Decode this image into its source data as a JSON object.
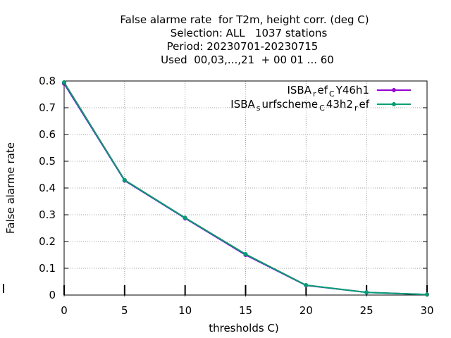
{
  "chart_data": {
    "type": "line",
    "title_lines": [
      "False alarme rate  for T2m, height corr. (deg C)",
      "Selection: ALL   1037 stations",
      "Period: 20230701-20230715",
      "Used  00,03,...,21  + 00 01 ... 60"
    ],
    "xlabel": "thresholds C)",
    "ylabel": "False alarme rate",
    "xlim": [
      0,
      30
    ],
    "ylim": [
      0,
      0.8
    ],
    "x_ticks": [
      0,
      5,
      10,
      15,
      20,
      25,
      30
    ],
    "y_ticks": [
      0,
      0.1,
      0.2,
      0.3,
      0.4,
      0.5,
      0.6,
      0.7,
      0.8
    ],
    "x_tick_labels": [
      "0",
      "5",
      "10",
      "15",
      "20",
      "25",
      "30"
    ],
    "y_tick_labels": [
      "0",
      "0.1",
      "0.2",
      "0.3",
      "0.4",
      "0.5",
      "0.6",
      "0.7",
      "0.8"
    ],
    "grid": true,
    "legend_position": "top-right",
    "x": [
      0,
      5,
      10,
      15,
      20,
      25,
      30
    ],
    "series": [
      {
        "name": "ISBA_ref_CY46h1",
        "legend_parts": [
          [
            "ISBA",
            "n"
          ],
          [
            "r",
            "s"
          ],
          [
            "ef",
            "n"
          ],
          [
            "C",
            "s"
          ],
          [
            "Y46h1",
            "n"
          ]
        ],
        "color": "#9400d3",
        "values": [
          0.79,
          0.428,
          0.287,
          0.15,
          0.036,
          0.01,
          0.002
        ]
      },
      {
        "name": "ISBA_surfscheme_C43h2_ref",
        "legend_parts": [
          [
            "ISBA",
            "n"
          ],
          [
            "s",
            "s"
          ],
          [
            "urfscheme",
            "n"
          ],
          [
            "C",
            "s"
          ],
          [
            "43h2",
            "n"
          ],
          [
            "r",
            "s"
          ],
          [
            "ef",
            "n"
          ]
        ],
        "color": "#009e73",
        "values": [
          0.795,
          0.43,
          0.289,
          0.153,
          0.037,
          0.01,
          0.002
        ]
      }
    ]
  }
}
